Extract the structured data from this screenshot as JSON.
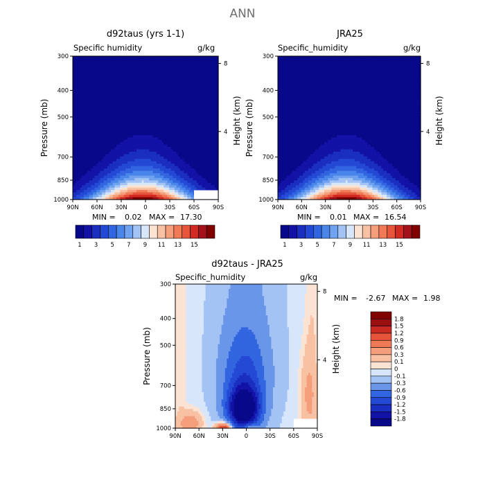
{
  "main_title": "ANN",
  "chart_data": [
    {
      "type": "heatmap",
      "panel": "model",
      "title": "d92taus (yrs 1-1)",
      "left_label": "Specific humidity",
      "right_label": "g/kg",
      "ylabel": "Pressure (mb)",
      "y2label": "Height (km)",
      "x_ticks": [
        "90N",
        "60N",
        "30N",
        "0",
        "30S",
        "60S",
        "90S"
      ],
      "y_ticks": [
        "300",
        "400",
        "500",
        "700",
        "850",
        "1000"
      ],
      "y2_ticks": [
        "8",
        "4"
      ],
      "xlim": [
        90,
        -90
      ],
      "ylim": [
        1000,
        300
      ],
      "y_scale": "log",
      "min_label": "MIN =",
      "min_value": "0.02",
      "max_label": "MAX =",
      "max_value": "17.30",
      "levels": [
        1,
        2,
        3,
        4,
        5,
        6,
        7,
        8,
        9,
        10,
        11,
        12,
        13,
        14,
        15,
        16
      ],
      "colorbar_labels": [
        "1",
        "3",
        "5",
        "7",
        "9",
        "11",
        "13",
        "15"
      ],
      "peak_lat": 4,
      "missing_region": {
        "lat": [
          -60,
          -90
        ],
        "p": [
          925,
          1000
        ]
      }
    },
    {
      "type": "heatmap",
      "panel": "obs",
      "title": "JRA25",
      "left_label": "Specific_humidity",
      "right_label": "g/kg",
      "ylabel": "Pressure (mb)",
      "y2label": "Height (km)",
      "x_ticks": [
        "90N",
        "60N",
        "30N",
        "0",
        "30S",
        "60S",
        "90S"
      ],
      "y_ticks": [
        "300",
        "400",
        "500",
        "700",
        "850",
        "1000"
      ],
      "y2_ticks": [
        "8",
        "4"
      ],
      "xlim": [
        90,
        -90
      ],
      "ylim": [
        1000,
        300
      ],
      "y_scale": "log",
      "min_label": "MIN =",
      "min_value": "0.01",
      "max_label": "MAX =",
      "max_value": "16.54",
      "levels": [
        1,
        2,
        3,
        4,
        5,
        6,
        7,
        8,
        9,
        10,
        11,
        12,
        13,
        14,
        15,
        16
      ],
      "colorbar_labels": [
        "1",
        "3",
        "5",
        "7",
        "9",
        "11",
        "13",
        "15"
      ],
      "peak_lat": 4
    },
    {
      "type": "heatmap",
      "panel": "diff",
      "title": "d92taus - JRA25",
      "left_label": "Specific_humidity",
      "right_label": "g/kg",
      "ylabel": "Pressure (mb)",
      "y2label": "Height (km)",
      "x_ticks": [
        "90N",
        "60N",
        "30N",
        "0",
        "30S",
        "60S",
        "90S"
      ],
      "y_ticks": [
        "300",
        "400",
        "500",
        "700",
        "850",
        "1000"
      ],
      "y2_ticks": [
        "8",
        "4"
      ],
      "xlim": [
        90,
        -90
      ],
      "ylim": [
        1000,
        300
      ],
      "y_scale": "log",
      "min_label": "MIN =",
      "min_value": "-2.67",
      "max_label": "MAX =",
      "max_value": "1.98",
      "levels": [
        -1.8,
        -1.5,
        -1.2,
        -0.9,
        -0.6,
        -0.3,
        -0.1,
        0,
        0.1,
        0.3,
        0.6,
        0.9,
        1.2,
        1.5,
        1.8
      ],
      "colorbar_labels": [
        "1.8",
        "1.5",
        "1.2",
        "0.9",
        "0.6",
        "0.3",
        "0.1",
        "0",
        "-0.1",
        "-0.3",
        "-0.6",
        "-0.9",
        "-1.2",
        "-1.5",
        "-1.8"
      ],
      "missing_region": {
        "lat": [
          -60,
          -90
        ],
        "p": [
          925,
          1000
        ]
      }
    }
  ],
  "colors": {
    "seq_scale": [
      "#08088a",
      "#1212a6",
      "#1a2fc0",
      "#2449d4",
      "#3265e0",
      "#4a85ea",
      "#6fa2ef",
      "#a4c3f5",
      "#d8e6fb",
      "#fbe3d4",
      "#f8c1a3",
      "#f59e7c",
      "#f07a56",
      "#e6543a",
      "#d02a22",
      "#a3121a",
      "#800000"
    ],
    "div_scale": [
      "#08088a",
      "#1212a6",
      "#1a2fc0",
      "#2449d4",
      "#3265e0",
      "#6a96ea",
      "#a4c3f5",
      "#d8e6fb",
      "#fbe3d4",
      "#f8c1a3",
      "#f59e7c",
      "#f07a56",
      "#e6543a",
      "#c82a22",
      "#9a1010",
      "#800000"
    ]
  }
}
